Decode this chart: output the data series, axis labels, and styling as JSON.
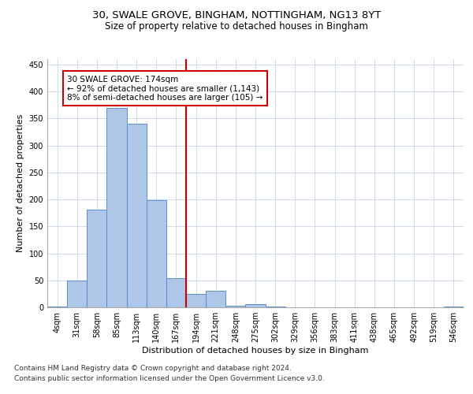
{
  "title_line1": "30, SWALE GROVE, BINGHAM, NOTTINGHAM, NG13 8YT",
  "title_line2": "Size of property relative to detached houses in Bingham",
  "xlabel": "Distribution of detached houses by size in Bingham",
  "ylabel": "Number of detached properties",
  "categories": [
    "4sqm",
    "31sqm",
    "58sqm",
    "85sqm",
    "113sqm",
    "140sqm",
    "167sqm",
    "194sqm",
    "221sqm",
    "248sqm",
    "275sqm",
    "302sqm",
    "329sqm",
    "356sqm",
    "383sqm",
    "411sqm",
    "438sqm",
    "465sqm",
    "492sqm",
    "519sqm",
    "546sqm"
  ],
  "values": [
    1,
    49,
    181,
    369,
    340,
    199,
    54,
    25,
    31,
    3,
    6,
    1,
    0,
    0,
    0,
    0,
    0,
    0,
    0,
    0,
    1
  ],
  "bar_color": "#aec6e8",
  "bar_edge_color": "#5b8fc9",
  "vline_x": 6.5,
  "vline_color": "#cc0000",
  "annotation_text": "30 SWALE GROVE: 174sqm\n← 92% of detached houses are smaller (1,143)\n8% of semi-detached houses are larger (105) →",
  "annotation_box_color": "#ffffff",
  "annotation_box_edge_color": "#cc0000",
  "ylim": [
    0,
    460
  ],
  "yticks": [
    0,
    50,
    100,
    150,
    200,
    250,
    300,
    350,
    400,
    450
  ],
  "bg_color": "#ffffff",
  "grid_color": "#c8d4e8",
  "footer_line1": "Contains HM Land Registry data © Crown copyright and database right 2024.",
  "footer_line2": "Contains public sector information licensed under the Open Government Licence v3.0.",
  "title_fontsize": 9.5,
  "subtitle_fontsize": 8.5,
  "axis_label_fontsize": 8,
  "tick_fontsize": 7,
  "annotation_fontsize": 7.5,
  "footer_fontsize": 6.5
}
